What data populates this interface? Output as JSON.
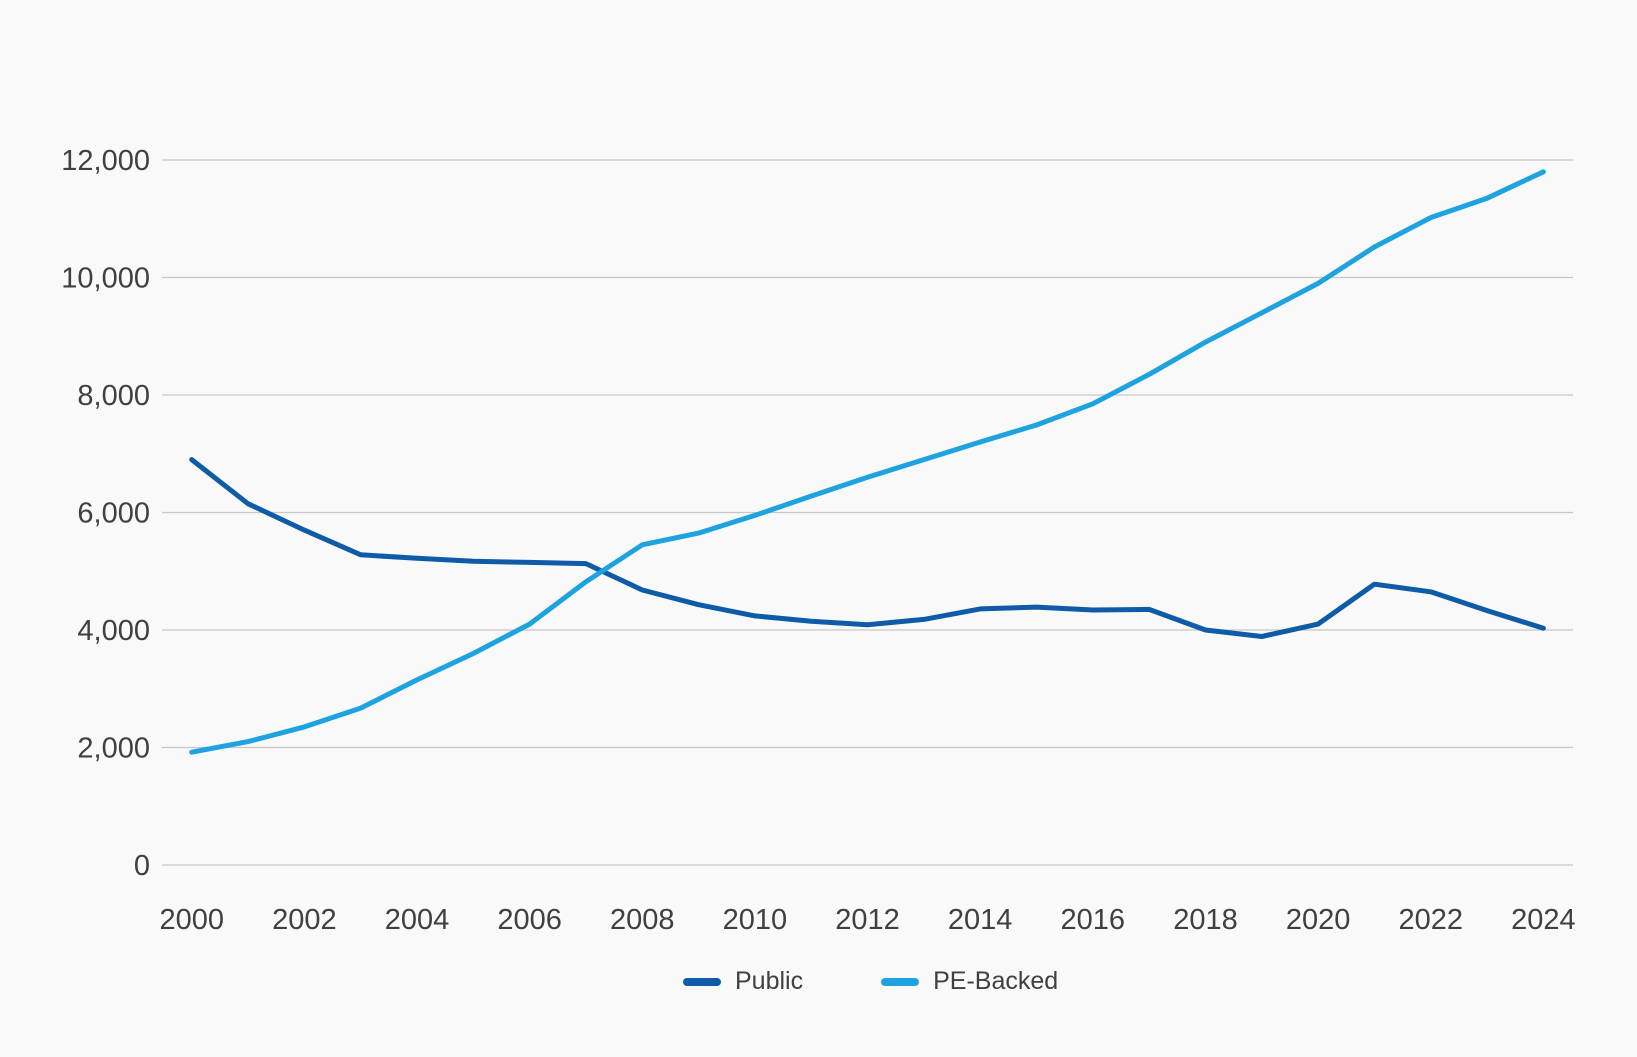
{
  "chart_data": {
    "type": "line",
    "title": "",
    "xlabel": "",
    "ylabel": "",
    "x": [
      2000,
      2001,
      2002,
      2003,
      2004,
      2005,
      2006,
      2007,
      2008,
      2009,
      2010,
      2011,
      2012,
      2013,
      2014,
      2015,
      2016,
      2017,
      2018,
      2019,
      2020,
      2021,
      2022,
      2023,
      2024
    ],
    "series": [
      {
        "name": "Public",
        "color": "#0e5ca8",
        "values": [
          6900,
          6150,
          5700,
          5280,
          5220,
          5170,
          5150,
          5130,
          4680,
          4430,
          4240,
          4150,
          4090,
          4180,
          4360,
          4390,
          4340,
          4350,
          4000,
          3890,
          4100,
          4780,
          4650,
          4330,
          4030
        ]
      },
      {
        "name": "PE-Backed",
        "color": "#1ea3e0",
        "values": [
          1920,
          2100,
          2350,
          2670,
          3150,
          3600,
          4100,
          4820,
          5450,
          5650,
          5950,
          6280,
          6600,
          6900,
          7200,
          7490,
          7850,
          8350,
          8900,
          9400,
          9900,
          10520,
          11020,
          11350,
          11800
        ]
      }
    ],
    "ylim": [
      0,
      12000
    ],
    "ytick_step": 2000,
    "ytick_labels": [
      "0",
      "2,000",
      "4,000",
      "6,000",
      "8,000",
      "10,000",
      "12,000"
    ],
    "xtick_step": 2,
    "xtick_labels": [
      "2000",
      "2002",
      "2004",
      "2006",
      "2008",
      "2010",
      "2012",
      "2014",
      "2016",
      "2018",
      "2020",
      "2022",
      "2024"
    ],
    "grid": true,
    "legend_position": "bottom-center",
    "axis_text_color": "#404040",
    "gridline_color": "#c7c7c7",
    "background_color": "#f9f9f9"
  }
}
